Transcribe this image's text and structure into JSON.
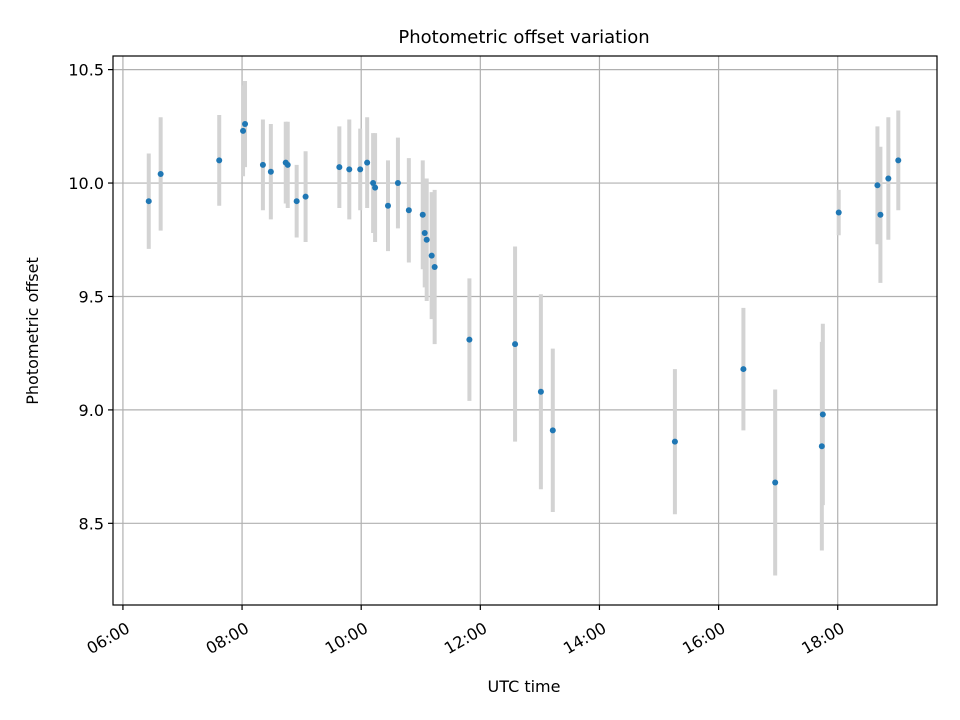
{
  "chart_data": {
    "type": "scatter",
    "title": "Photometric offset variation",
    "xlabel": "UTC time",
    "ylabel": "Photometric offset",
    "x_axis": "time",
    "xlim": [
      "05:50",
      "19:40"
    ],
    "ylim": [
      8.14,
      10.56
    ],
    "xticks": [
      "06:00",
      "08:00",
      "10:00",
      "12:00",
      "14:00",
      "16:00",
      "18:00"
    ],
    "yticks": [
      8.5,
      9.0,
      9.5,
      10.0,
      10.5
    ],
    "ytick_labels": [
      "8.5",
      "9.0",
      "9.5",
      "10.0",
      "10.5"
    ],
    "grid": true,
    "point_color": "#1f77b4",
    "errorbar_color": "#d3d3d3",
    "points": [
      {
        "x": "06:26",
        "y": 9.92,
        "err": 0.21
      },
      {
        "x": "06:38",
        "y": 10.04,
        "err": 0.25
      },
      {
        "x": "07:37",
        "y": 10.1,
        "err": 0.2
      },
      {
        "x": "08:01",
        "y": 10.23,
        "err": 0.2
      },
      {
        "x": "08:03",
        "y": 10.26,
        "err": 0.19
      },
      {
        "x": "08:21",
        "y": 10.08,
        "err": 0.2
      },
      {
        "x": "08:29",
        "y": 10.05,
        "err": 0.21
      },
      {
        "x": "08:44",
        "y": 10.09,
        "err": 0.18
      },
      {
        "x": "08:46",
        "y": 10.08,
        "err": 0.19
      },
      {
        "x": "08:55",
        "y": 9.92,
        "err": 0.16
      },
      {
        "x": "09:04",
        "y": 9.94,
        "err": 0.2
      },
      {
        "x": "09:38",
        "y": 10.07,
        "err": 0.18
      },
      {
        "x": "09:48",
        "y": 10.06,
        "err": 0.22
      },
      {
        "x": "09:59",
        "y": 10.06,
        "err": 0.18
      },
      {
        "x": "10:06",
        "y": 10.09,
        "err": 0.2
      },
      {
        "x": "10:12",
        "y": 10.0,
        "err": 0.22
      },
      {
        "x": "10:14",
        "y": 9.98,
        "err": 0.24
      },
      {
        "x": "10:27",
        "y": 9.9,
        "err": 0.2
      },
      {
        "x": "10:37",
        "y": 10.0,
        "err": 0.2
      },
      {
        "x": "10:48",
        "y": 9.88,
        "err": 0.23
      },
      {
        "x": "11:02",
        "y": 9.86,
        "err": 0.24
      },
      {
        "x": "11:04",
        "y": 9.78,
        "err": 0.24
      },
      {
        "x": "11:06",
        "y": 9.75,
        "err": 0.27
      },
      {
        "x": "11:11",
        "y": 9.68,
        "err": 0.28
      },
      {
        "x": "11:14",
        "y": 9.63,
        "err": 0.34
      },
      {
        "x": "11:49",
        "y": 9.31,
        "err": 0.27
      },
      {
        "x": "12:35",
        "y": 9.29,
        "err": 0.43
      },
      {
        "x": "13:01",
        "y": 9.08,
        "err": 0.43
      },
      {
        "x": "13:13",
        "y": 8.91,
        "err": 0.36
      },
      {
        "x": "15:16",
        "y": 8.86,
        "err": 0.32
      },
      {
        "x": "16:25",
        "y": 9.18,
        "err": 0.27
      },
      {
        "x": "16:57",
        "y": 8.68,
        "err": 0.41
      },
      {
        "x": "17:44",
        "y": 8.84,
        "err": 0.46
      },
      {
        "x": "17:45",
        "y": 8.98,
        "err": 0.4
      },
      {
        "x": "18:01",
        "y": 9.87,
        "err": 0.1
      },
      {
        "x": "18:40",
        "y": 9.99,
        "err": 0.26
      },
      {
        "x": "18:43",
        "y": 9.86,
        "err": 0.3
      },
      {
        "x": "18:51",
        "y": 10.02,
        "err": 0.27
      },
      {
        "x": "19:01",
        "y": 10.1,
        "err": 0.22
      }
    ]
  }
}
